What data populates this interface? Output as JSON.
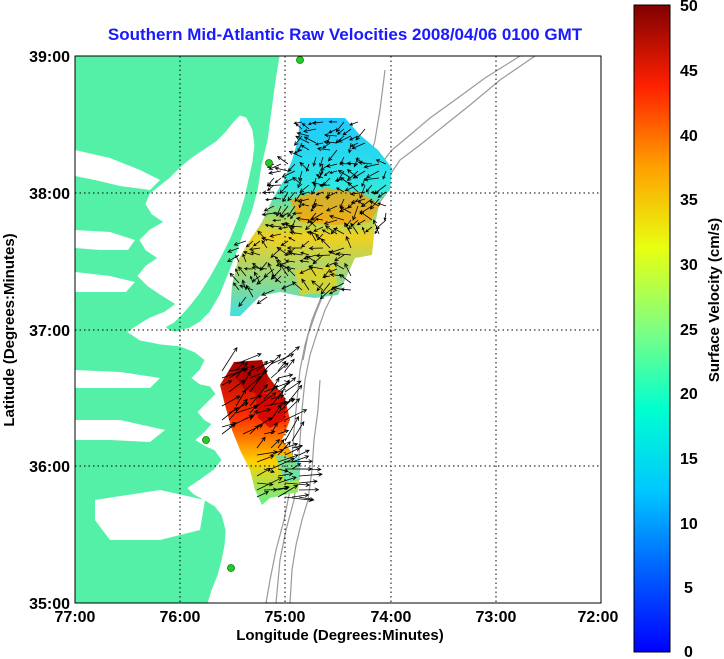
{
  "title": "Southern Mid-Atlantic Raw Velocities 2008/04/06 0100 GMT",
  "x_axis": {
    "label": "Longitude (Degrees:Minutes)",
    "ticks": [
      "77:00",
      "76:00",
      "75:00",
      "74:00",
      "73:00",
      "72:00"
    ]
  },
  "y_axis": {
    "label": "Latitude (Degrees:Minutes)",
    "ticks": [
      "39:00",
      "38:00",
      "37:00",
      "36:00",
      "35:00"
    ]
  },
  "colorbar": {
    "label": "Surface Velocity (cm/s)",
    "ticks": [
      "50",
      "45",
      "40",
      "35",
      "30",
      "25",
      "20",
      "15",
      "10",
      "5",
      "0"
    ],
    "min": 0,
    "max": 50
  },
  "colors": {
    "land": "#55f0a8",
    "bathymetry": "#9a9a9a",
    "stations": "#22cc22",
    "title": "#1a1aff"
  },
  "grid": true,
  "extent": {
    "lon": [
      -77,
      -72
    ],
    "lat": [
      35,
      39
    ]
  }
}
